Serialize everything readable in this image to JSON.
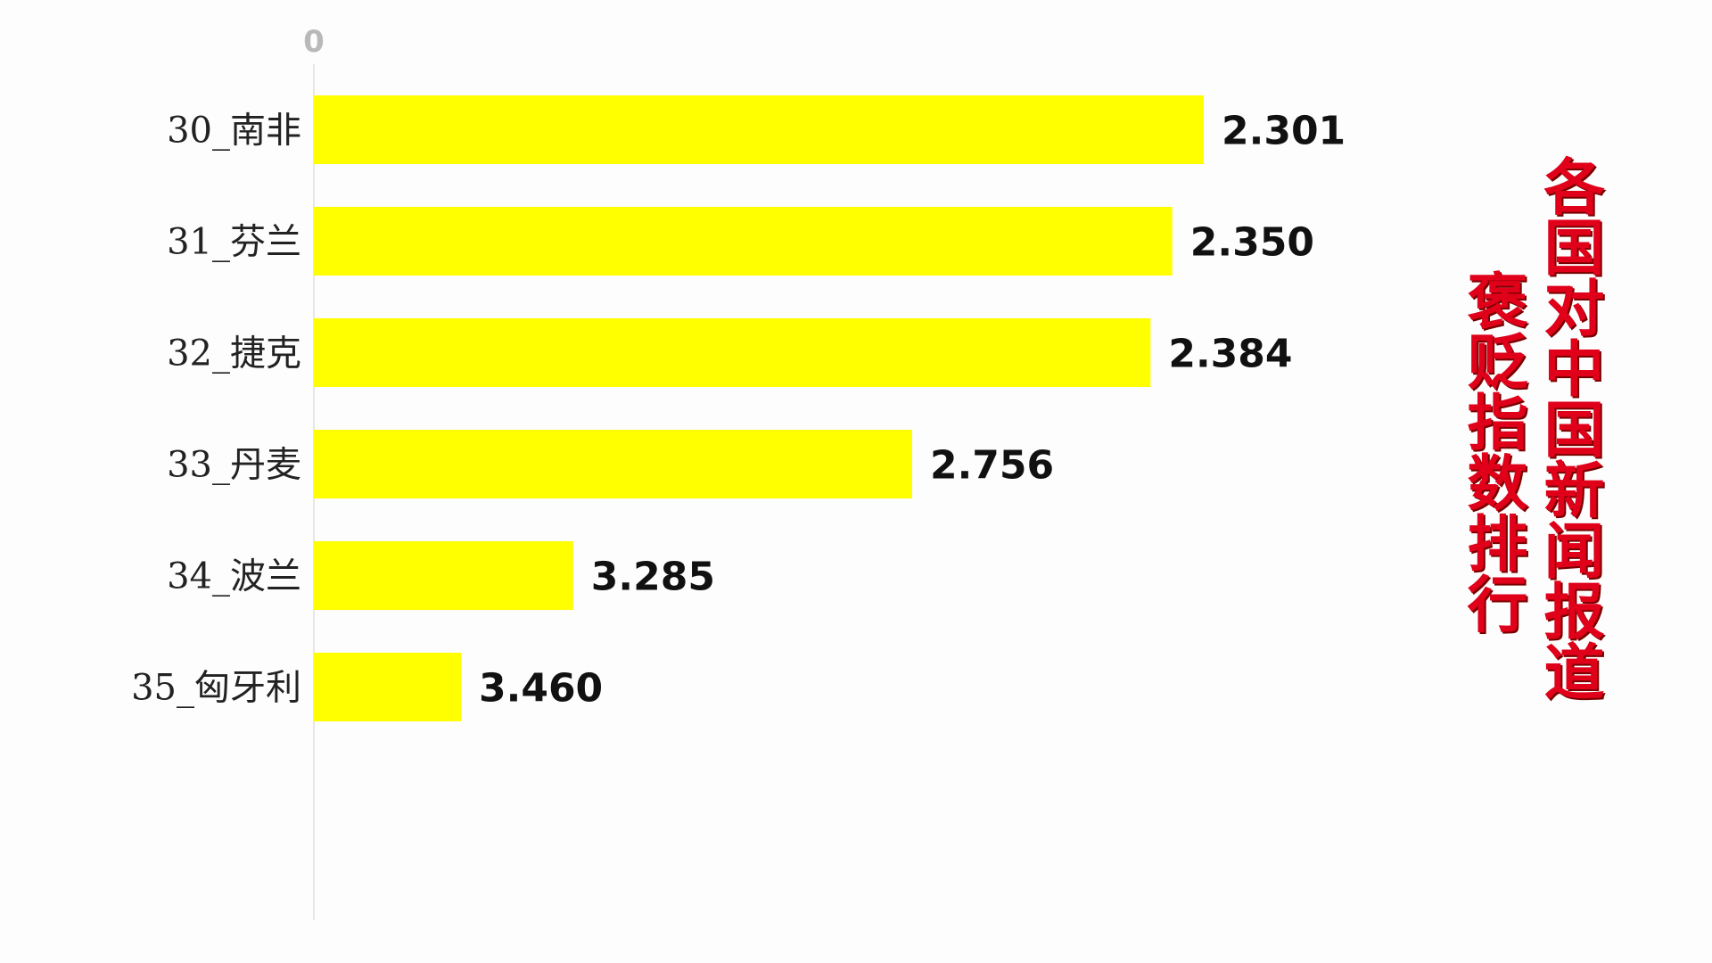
{
  "chart_data": {
    "type": "bar",
    "orientation": "horizontal",
    "categories": [
      "30_南非",
      "31_芬兰",
      "32_捷克",
      "33_丹麦",
      "34_波兰",
      "35_匈牙利"
    ],
    "values": [
      2.301,
      2.35,
      2.384,
      2.756,
      3.285,
      3.46
    ],
    "value_labels": [
      "2.301",
      "2.350",
      "2.384",
      "2.756",
      "3.285",
      "3.460"
    ],
    "x_tick_labels": [
      "0"
    ],
    "bar_color": "#ffff00",
    "grid": false,
    "legend": "none"
  },
  "title": {
    "line1": "各国对中国新闻报道",
    "line2": "褒贬指数排行",
    "color": "#e0001a"
  }
}
